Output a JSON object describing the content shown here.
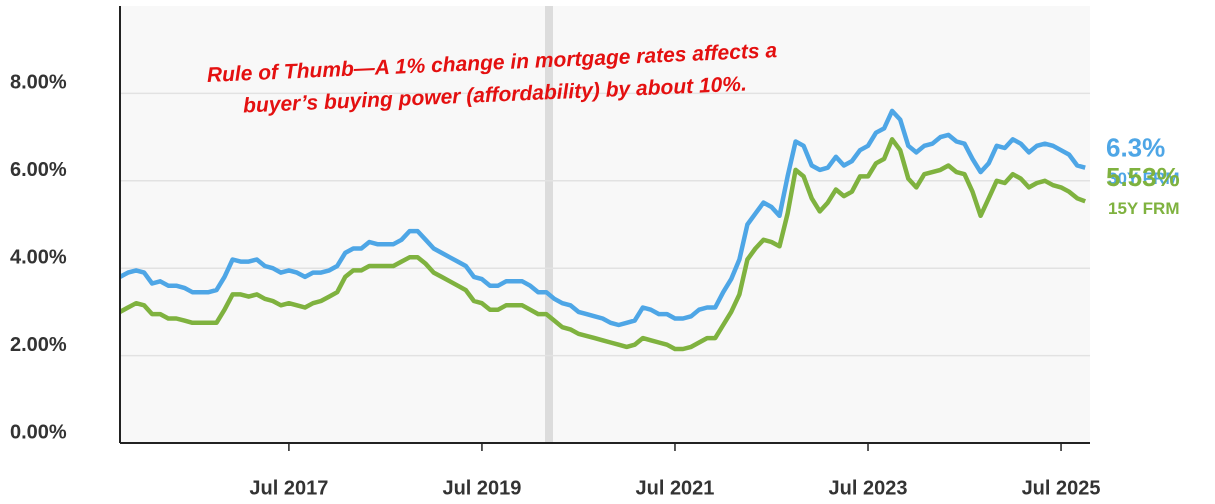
{
  "chart_data": {
    "type": "line",
    "annotation": [
      "Rule of Thumb—A 1% change in mortgage rates affects a",
      "buyer’s buying power (affordability) by about 10%."
    ],
    "x": [
      2015.75,
      2015.833,
      2015.917,
      2016,
      2016.083,
      2016.167,
      2016.25,
      2016.333,
      2016.417,
      2016.5,
      2016.583,
      2016.667,
      2016.75,
      2016.833,
      2016.917,
      2017,
      2017.083,
      2017.167,
      2017.25,
      2017.333,
      2017.417,
      2017.5,
      2017.583,
      2017.667,
      2017.75,
      2017.833,
      2017.917,
      2018,
      2018.083,
      2018.167,
      2018.25,
      2018.333,
      2018.417,
      2018.5,
      2018.583,
      2018.667,
      2018.75,
      2018.833,
      2018.917,
      2019,
      2019.083,
      2019.167,
      2019.25,
      2019.333,
      2019.417,
      2019.5,
      2019.583,
      2019.667,
      2019.75,
      2019.833,
      2019.917,
      2020,
      2020.083,
      2020.167,
      2020.25,
      2020.333,
      2020.417,
      2020.5,
      2020.583,
      2020.667,
      2020.75,
      2020.833,
      2020.917,
      2021,
      2021.083,
      2021.167,
      2021.25,
      2021.333,
      2021.417,
      2021.5,
      2021.583,
      2021.667,
      2021.75,
      2021.833,
      2021.917,
      2022,
      2022.083,
      2022.167,
      2022.25,
      2022.333,
      2022.417,
      2022.5,
      2022.583,
      2022.667,
      2022.75,
      2022.833,
      2022.917,
      2023,
      2023.083,
      2023.167,
      2023.25,
      2023.333,
      2023.417,
      2023.5,
      2023.583,
      2023.667,
      2023.75,
      2023.833,
      2023.917,
      2024,
      2024.083,
      2024.167,
      2024.25,
      2024.333,
      2024.417,
      2024.5,
      2024.583,
      2024.667,
      2024.75,
      2024.833,
      2024.917,
      2025,
      2025.083,
      2025.167,
      2025.25,
      2025.333,
      2025.417,
      2025.5,
      2025.583,
      2025.667,
      2025.75
    ],
    "xlim": [
      2015.75,
      2025.8
    ],
    "xticks": [
      {
        "value": 2017.5,
        "label": "Jul 2017"
      },
      {
        "value": 2019.5,
        "label": "Jul 2019"
      },
      {
        "value": 2021.5,
        "label": "Jul 2021"
      },
      {
        "value": 2023.5,
        "label": "Jul 2023"
      },
      {
        "value": 2025.5,
        "label": "Jul 2025"
      }
    ],
    "ylim": [
      0,
      10
    ],
    "yticks": [
      {
        "value": 0,
        "label": "0.00%"
      },
      {
        "value": 2,
        "label": "2.00%"
      },
      {
        "value": 4,
        "label": "4.00%"
      },
      {
        "value": 6,
        "label": "6.00%"
      },
      {
        "value": 8,
        "label": "8.00%"
      }
    ],
    "grid": true,
    "series": [
      {
        "name": "30Y FRM",
        "color": "#4ea6e6",
        "values": [
          3.8,
          3.9,
          3.95,
          3.9,
          3.65,
          3.7,
          3.6,
          3.6,
          3.55,
          3.45,
          3.45,
          3.45,
          3.5,
          3.8,
          4.2,
          4.15,
          4.15,
          4.2,
          4.05,
          4.0,
          3.9,
          3.95,
          3.9,
          3.8,
          3.9,
          3.9,
          3.95,
          4.05,
          4.35,
          4.45,
          4.45,
          4.6,
          4.55,
          4.55,
          4.55,
          4.65,
          4.85,
          4.85,
          4.65,
          4.45,
          4.35,
          4.25,
          4.15,
          4.05,
          3.8,
          3.75,
          3.6,
          3.6,
          3.7,
          3.7,
          3.7,
          3.6,
          3.45,
          3.45,
          3.3,
          3.2,
          3.15,
          3.0,
          2.95,
          2.9,
          2.85,
          2.75,
          2.7,
          2.75,
          2.8,
          3.1,
          3.05,
          2.95,
          2.95,
          2.85,
          2.85,
          2.9,
          3.05,
          3.1,
          3.1,
          3.45,
          3.75,
          4.2,
          5.0,
          5.25,
          5.5,
          5.4,
          5.2,
          6.1,
          6.9,
          6.8,
          6.35,
          6.25,
          6.3,
          6.55,
          6.35,
          6.45,
          6.7,
          6.8,
          7.1,
          7.2,
          7.6,
          7.4,
          6.8,
          6.65,
          6.8,
          6.85,
          7.0,
          7.05,
          6.9,
          6.85,
          6.5,
          6.2,
          6.4,
          6.8,
          6.75,
          6.95,
          6.85,
          6.65,
          6.8,
          6.85,
          6.8,
          6.7,
          6.6,
          6.35,
          6.3
        ],
        "value_labels": [
          null,
          null,
          null,
          null,
          null,
          null,
          null,
          null,
          null,
          null,
          null,
          null,
          null,
          null,
          null,
          null,
          null,
          null,
          null,
          null,
          null,
          null,
          null,
          null,
          null,
          null,
          null,
          null,
          null,
          null,
          null,
          null,
          null,
          null,
          null,
          null,
          null,
          null,
          null,
          null,
          null,
          null,
          null,
          null,
          null,
          null,
          null,
          null,
          null,
          null,
          null,
          null,
          null,
          null,
          null,
          null,
          null,
          null,
          null,
          null,
          null,
          null,
          null,
          null,
          null,
          null,
          null,
          null,
          null,
          null,
          null,
          null,
          null,
          null,
          null,
          null,
          null,
          null,
          null,
          null,
          null,
          null,
          null,
          null,
          null,
          null,
          null,
          null,
          null,
          null,
          null,
          null,
          null,
          null,
          null,
          null,
          null,
          null,
          null,
          null,
          null,
          null,
          null,
          null,
          null,
          null,
          null,
          null,
          null,
          null,
          null,
          null,
          null,
          null,
          null,
          null,
          null,
          null,
          null,
          null,
          "6.3%"
        ]
      },
      {
        "name": "15Y FRM",
        "color": "#7fb23f",
        "values": [
          3.0,
          3.1,
          3.2,
          3.15,
          2.95,
          2.95,
          2.85,
          2.85,
          2.8,
          2.75,
          2.75,
          2.75,
          2.75,
          3.05,
          3.4,
          3.4,
          3.35,
          3.4,
          3.3,
          3.25,
          3.15,
          3.2,
          3.15,
          3.1,
          3.2,
          3.25,
          3.35,
          3.45,
          3.8,
          3.95,
          3.95,
          4.05,
          4.05,
          4.05,
          4.05,
          4.15,
          4.25,
          4.25,
          4.1,
          3.9,
          3.8,
          3.7,
          3.6,
          3.5,
          3.25,
          3.2,
          3.05,
          3.05,
          3.15,
          3.15,
          3.15,
          3.05,
          2.95,
          2.95,
          2.8,
          2.65,
          2.6,
          2.5,
          2.45,
          2.4,
          2.35,
          2.3,
          2.25,
          2.2,
          2.25,
          2.4,
          2.35,
          2.3,
          2.25,
          2.15,
          2.15,
          2.2,
          2.3,
          2.4,
          2.4,
          2.7,
          3.0,
          3.4,
          4.2,
          4.45,
          4.65,
          4.6,
          4.5,
          5.25,
          6.25,
          6.1,
          5.6,
          5.3,
          5.5,
          5.8,
          5.65,
          5.75,
          6.1,
          6.1,
          6.4,
          6.5,
          6.95,
          6.7,
          6.05,
          5.85,
          6.15,
          6.2,
          6.25,
          6.35,
          6.2,
          6.15,
          5.75,
          5.2,
          5.6,
          6.0,
          5.95,
          6.15,
          6.05,
          5.85,
          5.95,
          6.0,
          5.9,
          5.85,
          5.75,
          5.6,
          5.53
        ],
        "value_labels": [
          null,
          null,
          null,
          null,
          null,
          null,
          null,
          null,
          null,
          null,
          null,
          null,
          null,
          null,
          null,
          null,
          null,
          null,
          null,
          null,
          null,
          null,
          null,
          null,
          null,
          null,
          null,
          null,
          null,
          null,
          null,
          null,
          null,
          null,
          null,
          null,
          null,
          null,
          null,
          null,
          null,
          null,
          null,
          null,
          null,
          null,
          null,
          null,
          null,
          null,
          null,
          null,
          null,
          null,
          null,
          null,
          null,
          null,
          null,
          null,
          null,
          null,
          null,
          null,
          null,
          null,
          null,
          null,
          null,
          null,
          null,
          null,
          null,
          null,
          null,
          null,
          null,
          null,
          null,
          null,
          null,
          null,
          null,
          null,
          null,
          null,
          null,
          null,
          null,
          null,
          null,
          null,
          null,
          null,
          null,
          null,
          null,
          null,
          null,
          null,
          null,
          null,
          null,
          null,
          null,
          null,
          null,
          null,
          null,
          null,
          null,
          null,
          null,
          null,
          null,
          null,
          null,
          null,
          null,
          null,
          "5.53%"
        ]
      }
    ]
  }
}
